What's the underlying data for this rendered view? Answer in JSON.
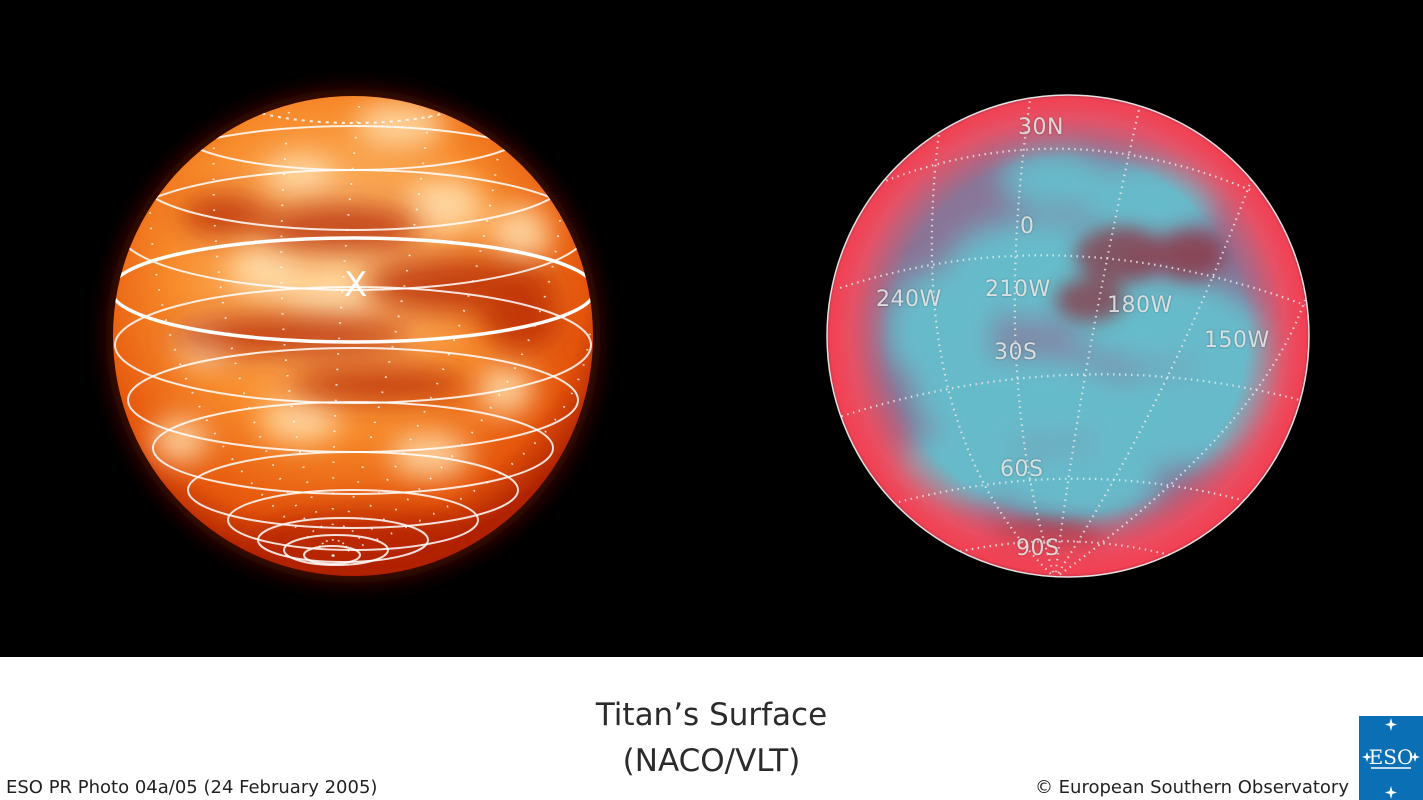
{
  "caption": {
    "title_line1": "Titan’s Surface",
    "title_line2": "(NACO/VLT)",
    "photo_id": "ESO PR Photo 04a/05 (24 February 2005)",
    "copyright": "© European Southern Observatory"
  },
  "left_image": {
    "marker": "X",
    "colors": {
      "core": "#ffe2b6",
      "mid": "#f06a10",
      "edge": "#b31e00"
    }
  },
  "right_image": {
    "labels": {
      "lat_30n": "30N",
      "lat_0": "0",
      "lon_240w": "240W",
      "lon_210w": "210W",
      "lon_180w": "180W",
      "lon_150w": "150W",
      "lat_30s": "30S",
      "lat_60s": "60S",
      "lat_90s": "90S"
    },
    "colors": {
      "surface": "#63c2d0",
      "limb": "#e5374d"
    }
  },
  "logo": {
    "text": "ESO"
  }
}
